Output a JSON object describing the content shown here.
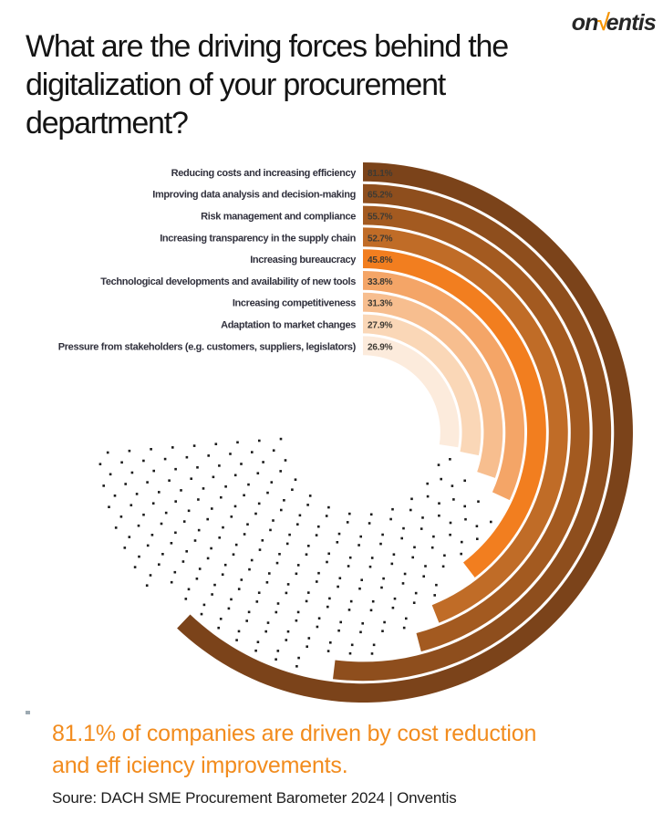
{
  "logo": {
    "prefix": "on",
    "check": "√",
    "suffix": "entis",
    "check_color": "#F59300"
  },
  "title": "What are the driving forces behind the\ndigitalization of your procurement\ndepartment?",
  "chart_data": {
    "type": "radial-bar",
    "unit": "%",
    "categories": [
      "Reducing costs and increasing efficiency",
      "Improving data analysis and decision-making",
      "Risk management and compliance",
      "Increasing transparency in the supply chain",
      "Increasing bureaucracy",
      "Technological developments and availability of new tools",
      "Increasing competitiveness",
      "Adaptation to market changes",
      "Pressure from stakeholders (e.g. customers, suppliers, legislators)"
    ],
    "values": [
      81.1,
      65.2,
      55.7,
      52.7,
      45.8,
      33.8,
      31.3,
      27.9,
      26.9
    ],
    "value_labels": [
      "81.1%",
      "65.2%",
      "55.7%",
      "52.7%",
      "45.8%",
      "33.8%",
      "31.3%",
      "27.9%",
      "26.9%"
    ],
    "colors": [
      "#7B431A",
      "#8E4E1D",
      "#A35A20",
      "#C06C27",
      "#F27E1F",
      "#F4A567",
      "#F7BE8F",
      "#FAD7B7",
      "#FCEBDC"
    ],
    "dot_color": "#1b1b1b",
    "scale": {
      "start": "12-o'clock, clockwise",
      "base_deg": 37,
      "deg_per_percent": 2.3,
      "full_scale_end_deg": 267
    },
    "remainder_style": "dotted-arcs",
    "legend_position": "labels left of ring start, value chips on ring start"
  },
  "highlight": {
    "text": "81.1% of companies are driven by cost reduction\nand eff iciency improvements.",
    "color": "#F28C1E"
  },
  "source": "Soure: DACH SME Procurement Barometer 2024 | Onventis"
}
